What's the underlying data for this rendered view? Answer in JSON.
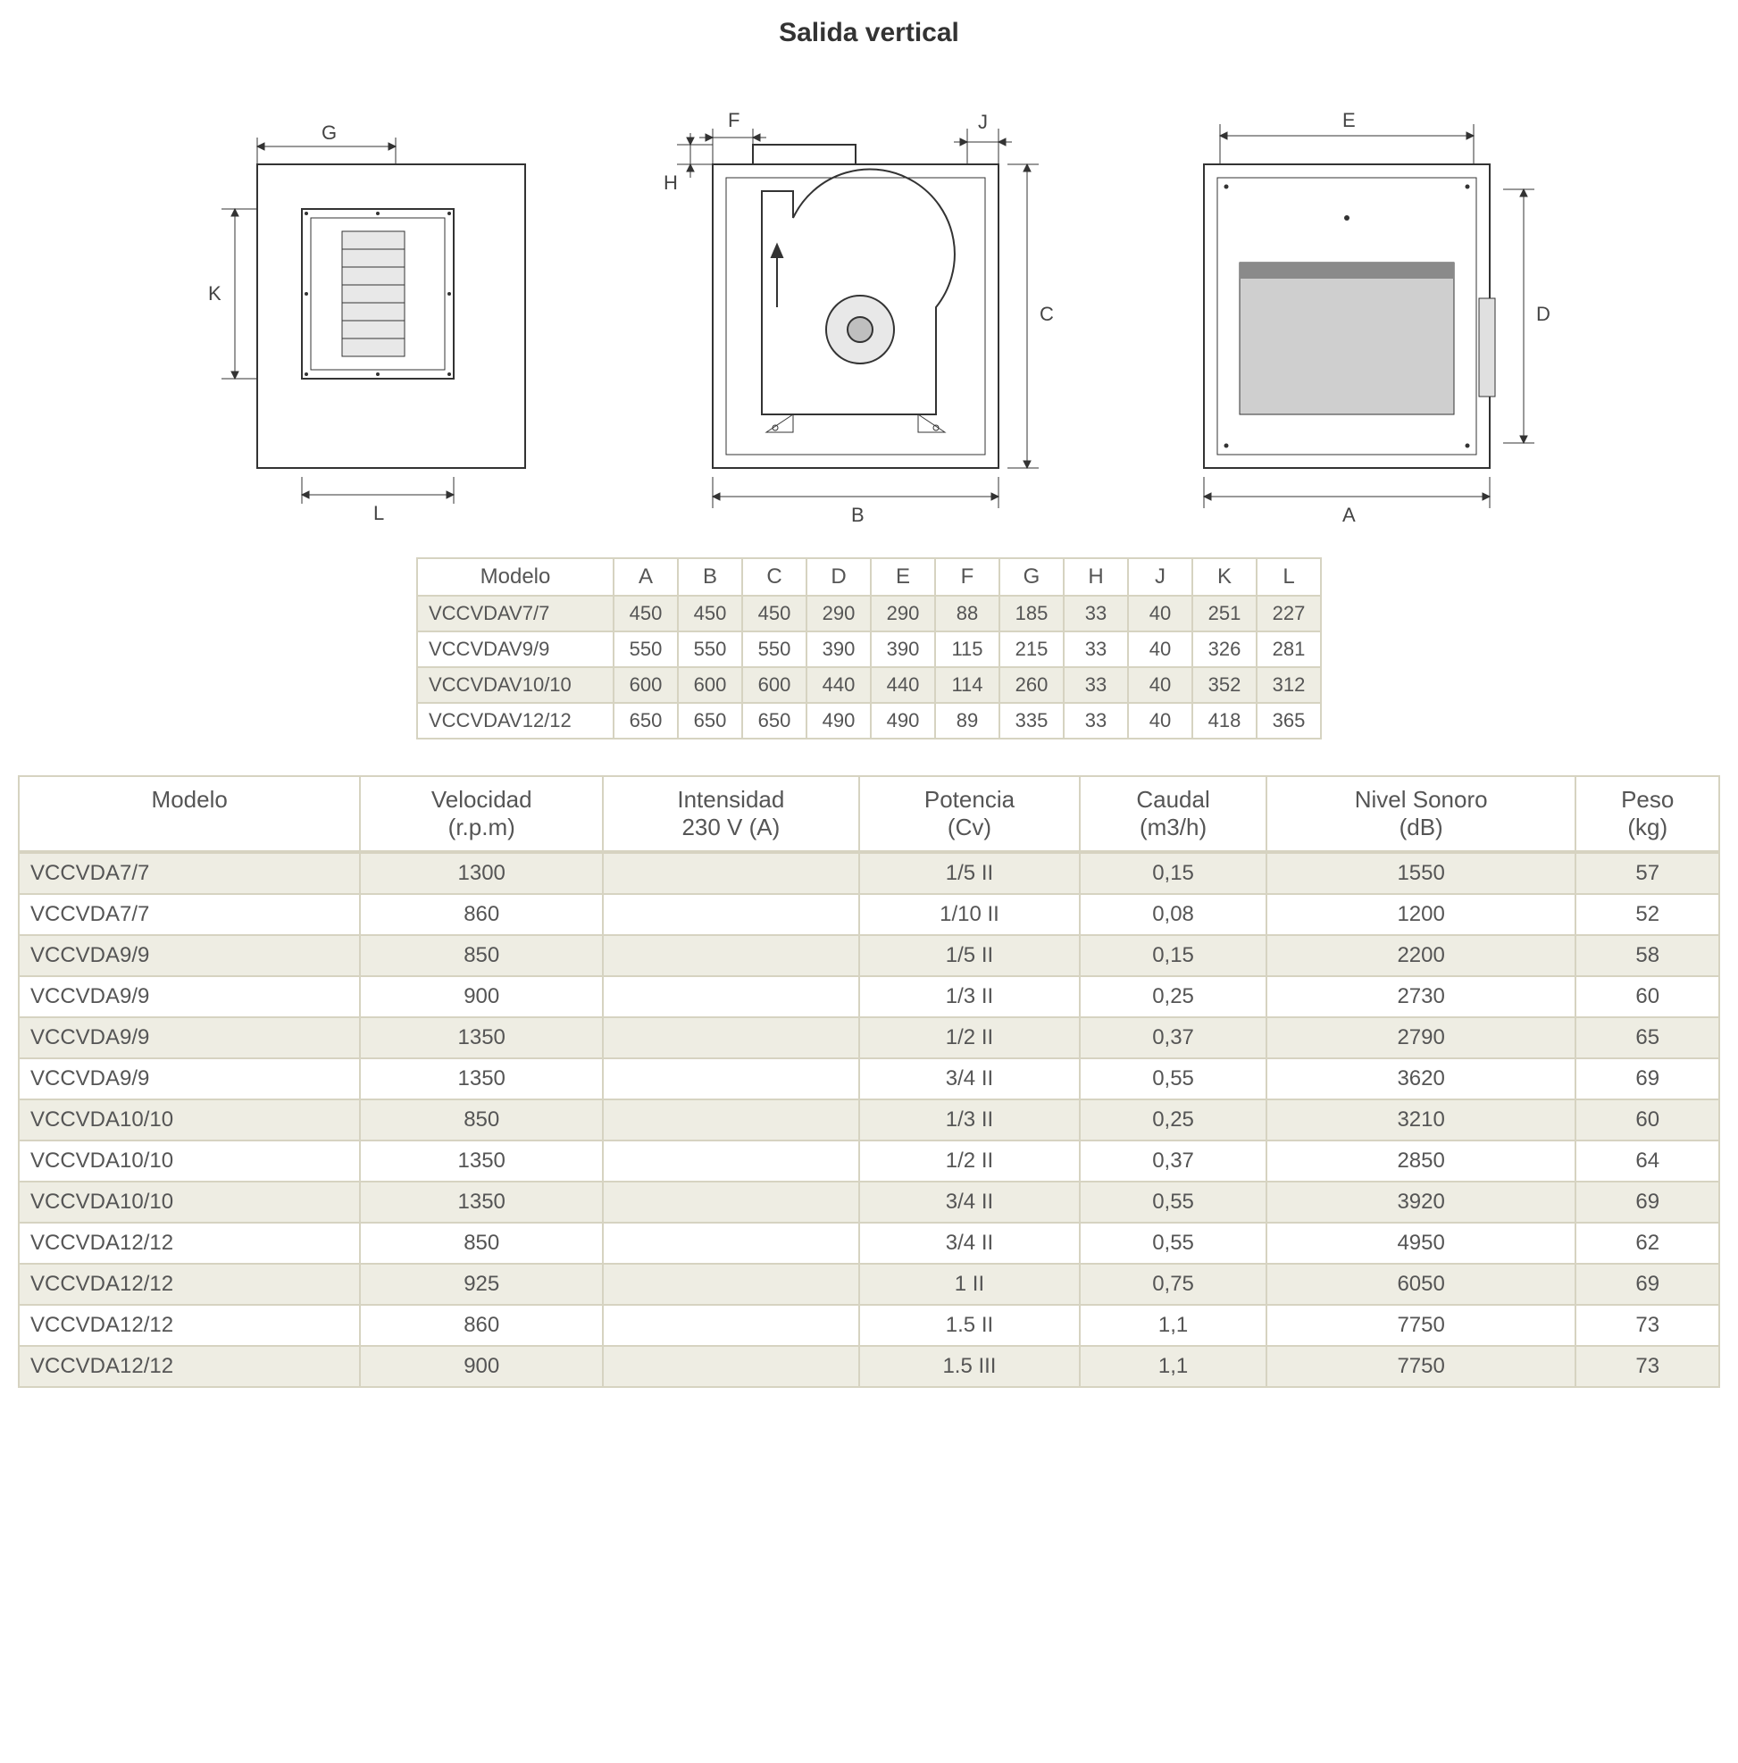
{
  "title": "Salida vertical",
  "colors": {
    "border": "#d6d3c1",
    "zebra": "#eeede3",
    "text": "#555555",
    "line": "#333333",
    "shade": "#bfbfbf"
  },
  "diagram_labels": {
    "view1": {
      "G": "G",
      "K": "K",
      "L": "L"
    },
    "view2": {
      "F": "F",
      "H": "H",
      "J": "J",
      "C": "C",
      "B": "B"
    },
    "view3": {
      "E": "E",
      "D": "D",
      "A": "A"
    }
  },
  "dim_table": {
    "header_model": "Modelo",
    "columns": [
      "A",
      "B",
      "C",
      "D",
      "E",
      "F",
      "G",
      "H",
      "J",
      "K",
      "L"
    ],
    "rows": [
      {
        "model": "VCCVDAV7/7",
        "vals": [
          450,
          450,
          450,
          290,
          290,
          88,
          185,
          33,
          40,
          251,
          227
        ]
      },
      {
        "model": "VCCVDAV9/9",
        "vals": [
          550,
          550,
          550,
          390,
          390,
          115,
          215,
          33,
          40,
          326,
          281
        ]
      },
      {
        "model": "VCCVDAV10/10",
        "vals": [
          600,
          600,
          600,
          440,
          440,
          114,
          260,
          33,
          40,
          352,
          312
        ]
      },
      {
        "model": "VCCVDAV12/12",
        "vals": [
          650,
          650,
          650,
          490,
          490,
          89,
          335,
          33,
          40,
          418,
          365
        ]
      }
    ]
  },
  "spec_table": {
    "headers": [
      {
        "l1": "Modelo",
        "l2": ""
      },
      {
        "l1": "Velocidad",
        "l2": "(r.p.m)"
      },
      {
        "l1": "Intensidad",
        "l2": "230 V (A)"
      },
      {
        "l1": "Potencia",
        "l2": "(Cv)"
      },
      {
        "l1": "Caudal",
        "l2": "(m3/h)"
      },
      {
        "l1": "Nivel Sonoro",
        "l2": "(dB)"
      },
      {
        "l1": "Peso",
        "l2": "(kg)"
      }
    ],
    "rows": [
      {
        "c": [
          "VCCVDA7/7",
          "1300",
          "",
          "1/5 II",
          "0,15",
          "1550",
          "57"
        ]
      },
      {
        "c": [
          "VCCVDA7/7",
          "860",
          "",
          "1/10 II",
          "0,08",
          "1200",
          "52"
        ]
      },
      {
        "c": [
          "VCCVDA9/9",
          "850",
          "",
          "1/5 II",
          "0,15",
          "2200",
          "58"
        ]
      },
      {
        "c": [
          "VCCVDA9/9",
          "900",
          "",
          "1/3 II",
          "0,25",
          "2730",
          "60"
        ]
      },
      {
        "c": [
          "VCCVDA9/9",
          "1350",
          "",
          "1/2 II",
          "0,37",
          "2790",
          "65"
        ]
      },
      {
        "c": [
          "VCCVDA9/9",
          "1350",
          "",
          "3/4 II",
          "0,55",
          "3620",
          "69"
        ]
      },
      {
        "c": [
          "VCCVDA10/10",
          "850",
          "",
          "1/3 II",
          "0,25",
          "3210",
          "60"
        ]
      },
      {
        "c": [
          "VCCVDA10/10",
          "1350",
          "",
          "1/2 II",
          "0,37",
          "2850",
          "64"
        ]
      },
      {
        "c": [
          "VCCVDA10/10",
          "1350",
          "",
          "3/4 II",
          "0,55",
          "3920",
          "69"
        ]
      },
      {
        "c": [
          "VCCVDA12/12",
          "850",
          "",
          "3/4 II",
          "0,55",
          "4950",
          "62"
        ]
      },
      {
        "c": [
          "VCCVDA12/12",
          "925",
          "",
          "1 II",
          "0,75",
          "6050",
          "69"
        ]
      },
      {
        "c": [
          "VCCVDA12/12",
          "860",
          "",
          "1.5 II",
          "1,1",
          "7750",
          "73"
        ]
      },
      {
        "c": [
          "VCCVDA12/12",
          "900",
          "",
          "1.5 III",
          "1,1",
          "7750",
          "73"
        ]
      }
    ]
  }
}
